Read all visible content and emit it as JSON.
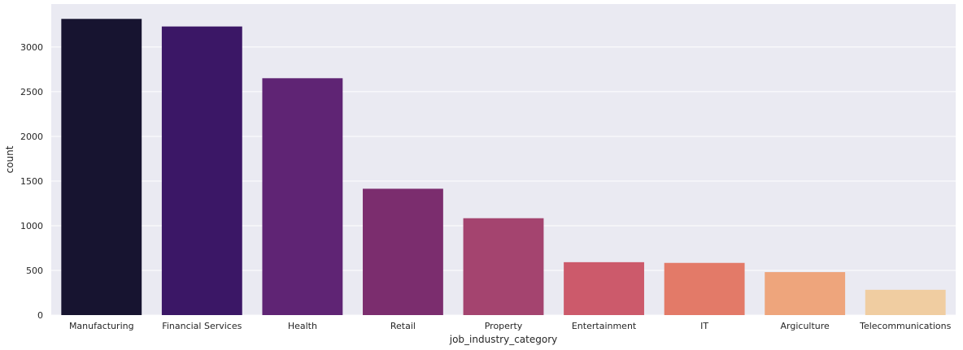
{
  "chart_data": {
    "type": "bar",
    "xlabel": "job_industry_category",
    "ylabel": "count",
    "categories": [
      "Manufacturing",
      "Financial Services",
      "Health",
      "Retail",
      "Property",
      "Entertainment",
      "IT",
      "Argiculture",
      "Telecommunications"
    ],
    "values": [
      3315,
      3230,
      2651,
      1414,
      1084,
      592,
      584,
      481,
      283
    ],
    "colors": [
      "#171430",
      "#3b1766",
      "#5f2474",
      "#7b2d6e",
      "#a4446f",
      "#cc5a6b",
      "#e37a68",
      "#eea57c",
      "#f0cda1"
    ],
    "ylim": [
      0,
      3481
    ],
    "yticks": [
      0,
      500,
      1000,
      1500,
      2000,
      2500,
      3000
    ],
    "grid": true,
    "legend": "none",
    "background": "#eaeaf2"
  }
}
